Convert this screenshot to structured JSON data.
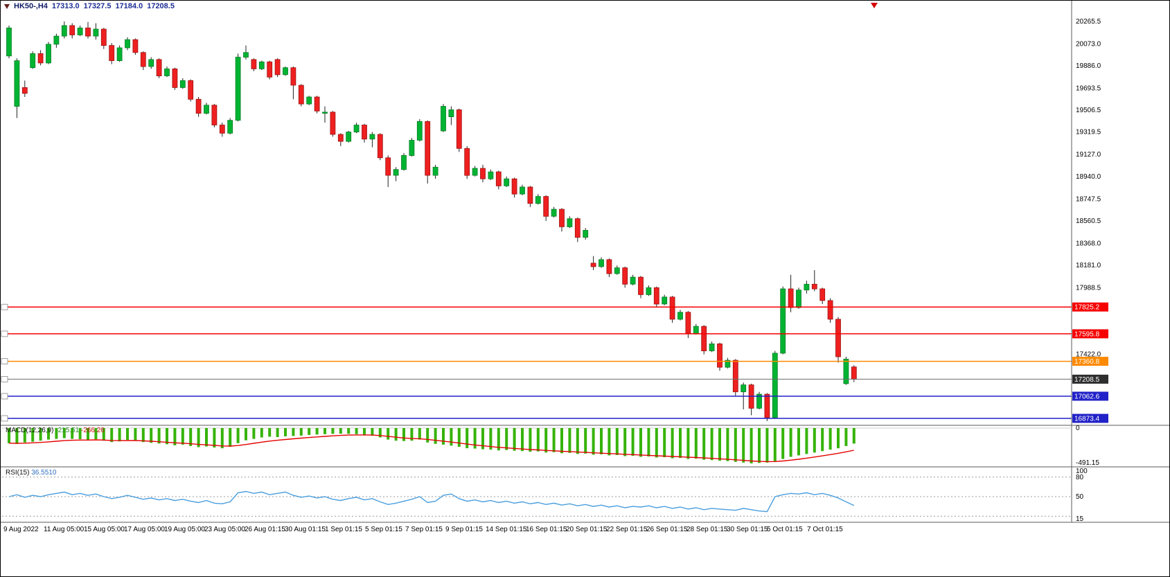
{
  "quote": {
    "symbol": "HK50-,H4",
    "open": "17313.0",
    "high": "17327.5",
    "low": "17184.0",
    "close": "17208.5"
  },
  "colors": {
    "bull": "#00b432",
    "bullEdge": "#077d25",
    "bear": "#ef2020",
    "bearEdge": "#9d1111",
    "wick": "#222222",
    "macdHist": "#36b30a",
    "macdSignal": "#e60000",
    "rsi": "#4a9ede",
    "badgeText": "#ffffff"
  },
  "chart_data": {
    "type": "candlestick",
    "symbol": "HK50-",
    "timeframe": "H4",
    "ylim": [
      16820,
      20330
    ],
    "y_ticks": [
      "20265.5",
      "20073.0",
      "19886.0",
      "19693.5",
      "19506.5",
      "19319.5",
      "19127.0",
      "18940.0",
      "18747.5",
      "18560.5",
      "18368.0",
      "18181.0",
      "17988.5",
      "17422.0"
    ],
    "hlines": [
      {
        "price": 17825.2,
        "label": "17825.2",
        "color": "#f60000",
        "width": 1.5
      },
      {
        "price": 17595.8,
        "label": "17595.8",
        "color": "#f60000",
        "width": 1.5
      },
      {
        "price": 17360.8,
        "label": "17360.8",
        "color": "#ff8a00",
        "width": 1.5
      },
      {
        "price": 17208.5,
        "label": "17208.5",
        "color": "#6b6b6b",
        "width": 1,
        "badge": "#2e2e2e"
      },
      {
        "price": 17062.6,
        "label": "17062.6",
        "color": "#2121c8",
        "width": 1.5
      },
      {
        "price": 16873.4,
        "label": "16873.4",
        "color": "#2121c8",
        "width": 1.5
      }
    ],
    "candles": [
      [
        19970,
        20230,
        19950,
        20210
      ],
      [
        19540,
        19950,
        19440,
        19930
      ],
      [
        19700,
        19760,
        19620,
        19650
      ],
      [
        19870,
        20010,
        19860,
        19990
      ],
      [
        19990,
        20020,
        19890,
        19910
      ],
      [
        19910,
        20090,
        19900,
        20070
      ],
      [
        20070,
        20160,
        20040,
        20140
      ],
      [
        20140,
        20265,
        20120,
        20230
      ],
      [
        20230,
        20250,
        20120,
        20150
      ],
      [
        20150,
        20230,
        20140,
        20210
      ],
      [
        20210,
        20260,
        20120,
        20140
      ],
      [
        20140,
        20250,
        20110,
        20200
      ],
      [
        20200,
        20210,
        20030,
        20060
      ],
      [
        20060,
        20080,
        19900,
        19930
      ],
      [
        19930,
        20060,
        19920,
        20040
      ],
      [
        20040,
        20130,
        20020,
        20110
      ],
      [
        20110,
        20120,
        19980,
        20000
      ],
      [
        20000,
        20010,
        19850,
        19880
      ],
      [
        19880,
        19960,
        19860,
        19940
      ],
      [
        19940,
        19950,
        19780,
        19800
      ],
      [
        19800,
        19880,
        19790,
        19860
      ],
      [
        19860,
        19870,
        19680,
        19700
      ],
      [
        19700,
        19780,
        19690,
        19760
      ],
      [
        19760,
        19770,
        19580,
        19600
      ],
      [
        19600,
        19620,
        19450,
        19480
      ],
      [
        19480,
        19570,
        19470,
        19550
      ],
      [
        19550,
        19560,
        19360,
        19380
      ],
      [
        19380,
        19400,
        19280,
        19310
      ],
      [
        19310,
        19440,
        19300,
        19420
      ],
      [
        19420,
        19990,
        19410,
        19960
      ],
      [
        19960,
        20060,
        19940,
        20000
      ],
      [
        19940,
        19950,
        19840,
        19860
      ],
      [
        19860,
        19930,
        19850,
        19920
      ],
      [
        19920,
        19930,
        19770,
        19790
      ],
      [
        19940,
        19950,
        19790,
        19810
      ],
      [
        19810,
        19880,
        19800,
        19870
      ],
      [
        19870,
        19880,
        19600,
        19720
      ],
      [
        19720,
        19730,
        19540,
        19560
      ],
      [
        19560,
        19630,
        19550,
        19620
      ],
      [
        19620,
        19630,
        19480,
        19500
      ],
      [
        19480,
        19540,
        19400,
        19490
      ],
      [
        19490,
        19500,
        19280,
        19300
      ],
      [
        19300,
        19310,
        19200,
        19240
      ],
      [
        19240,
        19330,
        19230,
        19320
      ],
      [
        19320,
        19400,
        19310,
        19380
      ],
      [
        19380,
        19390,
        19230,
        19260
      ],
      [
        19260,
        19320,
        19190,
        19300
      ],
      [
        19300,
        19310,
        19080,
        19100
      ],
      [
        19100,
        19120,
        18850,
        18950
      ],
      [
        18950,
        19020,
        18900,
        19000
      ],
      [
        19000,
        19140,
        18990,
        19120
      ],
      [
        19120,
        19270,
        19110,
        19250
      ],
      [
        19250,
        19430,
        19240,
        19410
      ],
      [
        19410,
        19420,
        18880,
        18950
      ],
      [
        18950,
        19040,
        18920,
        19020
      ],
      [
        19330,
        19560,
        19320,
        19540
      ],
      [
        19450,
        19540,
        19380,
        19510
      ],
      [
        19510,
        19520,
        19150,
        19180
      ],
      [
        19180,
        19200,
        18920,
        18950
      ],
      [
        18950,
        19030,
        18940,
        19010
      ],
      [
        19010,
        19040,
        18890,
        18920
      ],
      [
        18920,
        19000,
        18910,
        18980
      ],
      [
        18980,
        18990,
        18830,
        18860
      ],
      [
        18860,
        18940,
        18850,
        18920
      ],
      [
        18920,
        18930,
        18760,
        18790
      ],
      [
        18790,
        18870,
        18780,
        18850
      ],
      [
        18850,
        18860,
        18680,
        18710
      ],
      [
        18710,
        18790,
        18700,
        18770
      ],
      [
        18770,
        18780,
        18560,
        18600
      ],
      [
        18600,
        18680,
        18590,
        18660
      ],
      [
        18660,
        18670,
        18470,
        18510
      ],
      [
        18510,
        18600,
        18500,
        18580
      ],
      [
        18580,
        18590,
        18380,
        18420
      ],
      [
        18420,
        18500,
        18400,
        18480
      ],
      [
        18200,
        18260,
        18140,
        18170
      ],
      [
        18170,
        18250,
        18160,
        18230
      ],
      [
        18230,
        18240,
        18080,
        18110
      ],
      [
        18110,
        18180,
        18100,
        18160
      ],
      [
        18160,
        18170,
        17990,
        18020
      ],
      [
        18020,
        18100,
        18010,
        18080
      ],
      [
        18080,
        18090,
        17900,
        17930
      ],
      [
        17930,
        18010,
        17920,
        17990
      ],
      [
        17990,
        18000,
        17820,
        17850
      ],
      [
        17850,
        17930,
        17840,
        17910
      ],
      [
        17910,
        17920,
        17690,
        17720
      ],
      [
        17720,
        17800,
        17710,
        17780
      ],
      [
        17780,
        17790,
        17560,
        17600
      ],
      [
        17600,
        17680,
        17590,
        17660
      ],
      [
        17660,
        17670,
        17420,
        17450
      ],
      [
        17450,
        17530,
        17440,
        17510
      ],
      [
        17510,
        17520,
        17280,
        17310
      ],
      [
        17310,
        17390,
        17300,
        17370
      ],
      [
        17370,
        17380,
        17060,
        17100
      ],
      [
        17100,
        17180,
        16950,
        17160
      ],
      [
        17160,
        17170,
        16900,
        16960
      ],
      [
        16960,
        17100,
        16950,
        17080
      ],
      [
        17080,
        17090,
        16850,
        16880
      ],
      [
        16880,
        17450,
        16870,
        17430
      ],
      [
        17430,
        18000,
        17420,
        17980
      ],
      [
        17980,
        18100,
        17780,
        17820
      ],
      [
        17820,
        17990,
        17810,
        17970
      ],
      [
        17970,
        18050,
        17940,
        18020
      ],
      [
        18020,
        18140,
        17960,
        17980
      ],
      [
        17980,
        17990,
        17850,
        17880
      ],
      [
        17880,
        17900,
        17690,
        17720
      ],
      [
        17720,
        17740,
        17350,
        17400
      ],
      [
        17170,
        17400,
        17160,
        17380
      ],
      [
        17313,
        17327.5,
        17184,
        17208.5
      ]
    ],
    "macd": {
      "label": "MACD(12,26,9)",
      "value_main": "-215.51",
      "value_signal": "-266.26",
      "y_ticks": [
        "0",
        "-491.15"
      ],
      "ymin": -530,
      "hist": [
        -210,
        -220,
        -200,
        -190,
        -175,
        -160,
        -150,
        -140,
        -150,
        -155,
        -165,
        -155,
        -175,
        -195,
        -185,
        -165,
        -175,
        -195,
        -205,
        -215,
        -225,
        -240,
        -230,
        -250,
        -265,
        -255,
        -270,
        -280,
        -260,
        -210,
        -170,
        -150,
        -130,
        -120,
        -125,
        -115,
        -110,
        -105,
        -95,
        -90,
        -85,
        -80,
        -78,
        -80,
        -85,
        -95,
        -105,
        -130,
        -160,
        -175,
        -180,
        -175,
        -160,
        -200,
        -220,
        -230,
        -245,
        -260,
        -280,
        -285,
        -295,
        -300,
        -310,
        -305,
        -315,
        -320,
        -330,
        -325,
        -340,
        -335,
        -350,
        -345,
        -360,
        -355,
        -370,
        -365,
        -380,
        -375,
        -390,
        -385,
        -400,
        -395,
        -410,
        -405,
        -420,
        -415,
        -430,
        -425,
        -440,
        -445,
        -455,
        -460,
        -470,
        -480,
        -491,
        -485,
        -480,
        -460,
        -430,
        -400,
        -380,
        -360,
        -340,
        -320,
        -300,
        -280,
        -250,
        -215.5
      ]
    },
    "rsi": {
      "label": "RSI(15)",
      "value": "36.5510",
      "y_ticks": [
        "100",
        "80",
        "50",
        "15"
      ],
      "levels": [
        80,
        50,
        20
      ],
      "values": [
        50,
        53,
        49,
        52,
        50,
        53,
        55,
        57,
        53,
        55,
        52,
        54,
        50,
        47,
        49,
        52,
        49,
        46,
        48,
        45,
        47,
        44,
        46,
        43,
        41,
        44,
        40,
        39,
        42,
        56,
        58,
        55,
        57,
        53,
        55,
        57,
        52,
        49,
        51,
        48,
        50,
        46,
        44,
        47,
        49,
        45,
        47,
        42,
        38,
        40,
        43,
        46,
        50,
        41,
        43,
        52,
        54,
        47,
        43,
        45,
        42,
        44,
        41,
        43,
        40,
        42,
        39,
        41,
        38,
        40,
        37,
        39,
        36,
        38,
        35,
        37,
        34,
        36,
        33,
        35,
        34,
        36,
        33,
        35,
        32,
        34,
        31,
        33,
        30,
        32,
        31,
        30,
        29,
        32,
        30,
        28,
        27,
        50,
        53,
        55,
        54,
        56,
        53,
        55,
        52,
        48,
        42,
        36.5
      ]
    },
    "x_labels": [
      "9 Aug 2022",
      "11 Aug 05:00",
      "15 Aug 05:00",
      "17 Aug 05:00",
      "19 Aug 05:00",
      "23 Aug 05:00",
      "26 Aug 01:15",
      "30 Aug 01:15",
      "1 Sep 01:15",
      "5 Sep 01:15",
      "7 Sep 01:15",
      "9 Sep 01:15",
      "14 Sep 01:15",
      "16 Sep 01:15",
      "20 Sep 01:15",
      "22 Sep 01:15",
      "26 Sep 01:15",
      "28 Sep 01:15",
      "30 Sep 01:15",
      "5 Oct 01:15",
      "7 Oct 01:15"
    ]
  }
}
